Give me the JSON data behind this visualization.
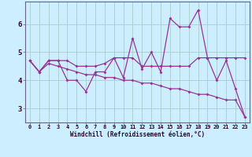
{
  "xlabel": "Windchill (Refroidissement éolien,°C)",
  "x": [
    0,
    1,
    2,
    3,
    4,
    5,
    6,
    7,
    8,
    9,
    10,
    11,
    12,
    13,
    14,
    15,
    16,
    17,
    18,
    19,
    20,
    21,
    22,
    23
  ],
  "line1": [
    4.7,
    4.3,
    4.7,
    4.7,
    4.0,
    4.0,
    3.6,
    4.3,
    4.3,
    4.8,
    4.1,
    5.5,
    4.4,
    5.0,
    4.3,
    6.2,
    5.9,
    5.9,
    6.5,
    4.8,
    4.0,
    4.7,
    3.7,
    2.7
  ],
  "line2": [
    4.7,
    4.3,
    4.7,
    4.7,
    4.7,
    4.5,
    4.5,
    4.5,
    4.6,
    4.8,
    4.8,
    4.8,
    4.5,
    4.5,
    4.5,
    4.5,
    4.5,
    4.5,
    4.8,
    4.8,
    4.8,
    4.8,
    4.8,
    4.8
  ],
  "line3": [
    4.7,
    4.3,
    4.6,
    4.5,
    4.4,
    4.3,
    4.2,
    4.2,
    4.1,
    4.1,
    4.0,
    4.0,
    3.9,
    3.9,
    3.8,
    3.7,
    3.7,
    3.6,
    3.5,
    3.5,
    3.4,
    3.3,
    3.3,
    2.7
  ],
  "color": "#993399",
  "bg_color": "#cceeff",
  "grid_color": "#aacccc",
  "ylim": [
    2.5,
    6.8
  ],
  "yticks": [
    3,
    4,
    5,
    6
  ],
  "marker": "D",
  "markersize": 2.0,
  "linewidth": 0.9
}
